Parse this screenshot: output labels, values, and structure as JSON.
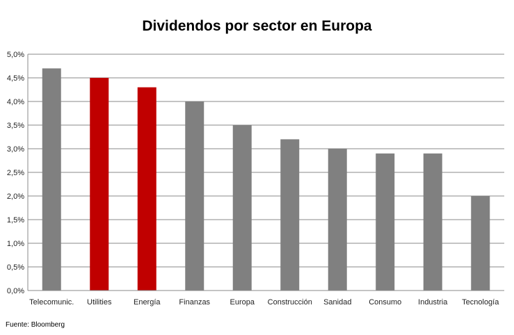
{
  "chart_data": {
    "type": "bar",
    "title": "Dividendos por sector en Europa",
    "categories": [
      "Telecomunic.",
      "Utilities",
      "Energía",
      "Finanzas",
      "Europa",
      "Construcción",
      "Sanidad",
      "Consumo",
      "Industria",
      "Tecnología"
    ],
    "values": [
      4.7,
      4.5,
      4.3,
      4.0,
      3.5,
      3.2,
      3.0,
      2.9,
      2.9,
      2.0
    ],
    "bar_colors": [
      "#808080",
      "#c00000",
      "#c00000",
      "#808080",
      "#808080",
      "#808080",
      "#808080",
      "#808080",
      "#808080",
      "#808080"
    ],
    "ylim": [
      0,
      5
    ],
    "yticks": [
      "0,0%",
      "0,5%",
      "1,0%",
      "1,5%",
      "2,0%",
      "2,5%",
      "3,0%",
      "3,5%",
      "4,0%",
      "4,5%",
      "5,0%"
    ],
    "xlabel": "",
    "ylabel": "",
    "grid": true,
    "legend": "none"
  },
  "source": "Fuente: Bloomberg"
}
